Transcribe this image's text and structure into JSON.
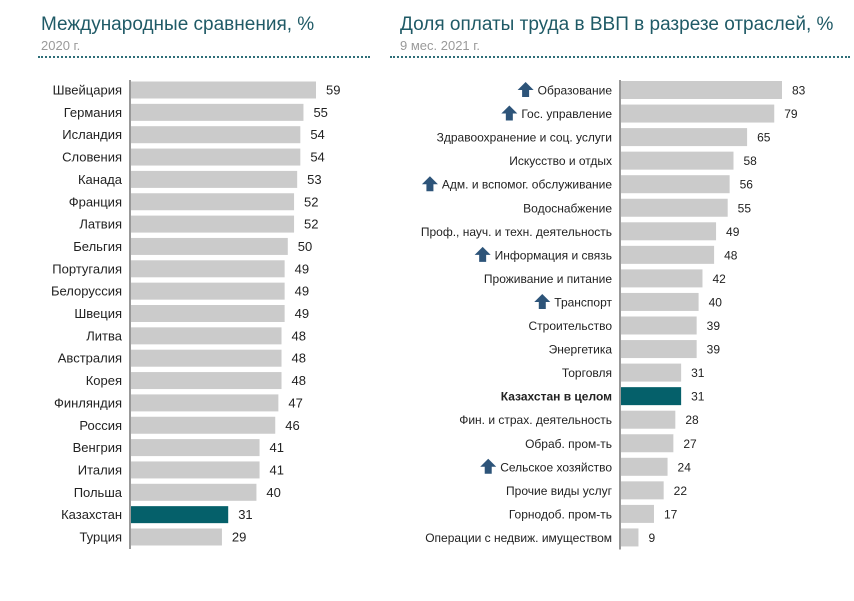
{
  "colors": {
    "title": "#1f5a66",
    "subtitle": "#9a9a9a",
    "bar": "#cbcbcb",
    "highlight": "#05606a",
    "arrow": "#2d5479",
    "text": "#222222"
  },
  "left": {
    "title": "Международные сравнения, %",
    "subtitle": "2020 г."
  },
  "right": {
    "title": "Доля оплаты труда в ВВП в разрезе отраслей, %",
    "subtitle": "9 мес. 2021 г."
  },
  "chart_data": [
    {
      "type": "bar",
      "orientation": "horizontal",
      "title": "Международные сравнения, %",
      "subtitle": "2020 г.",
      "categories": [
        "Швейцария",
        "Германия",
        "Исландия",
        "Словения",
        "Канада",
        "Франция",
        "Латвия",
        "Бельгия",
        "Португалия",
        "Белоруссия",
        "Швеция",
        "Литва",
        "Австралия",
        "Корея",
        "Финляндия",
        "Россия",
        "Венгрия",
        "Италия",
        "Польша",
        "Казахстан",
        "Турция"
      ],
      "values": [
        59,
        55,
        54,
        54,
        53,
        52,
        52,
        50,
        49,
        49,
        49,
        48,
        48,
        48,
        47,
        46,
        41,
        41,
        40,
        31,
        29
      ],
      "highlight": [
        "Казахстан"
      ],
      "xlim": [
        0,
        59
      ]
    },
    {
      "type": "bar",
      "orientation": "horizontal",
      "title": "Доля оплаты труда в ВВП в разрезе отраслей, %",
      "subtitle": "9 мес. 2021 г.",
      "categories": [
        "Образование",
        "Гос. управление",
        "Здравоохранение и соц. услуги",
        "Искусство и отдых",
        "Адм. и вспомог. обслуживание",
        "Водоснабжение",
        "Проф., науч. и техн. деятельность",
        "Информация и связь",
        "Проживание и питание",
        "Транспорт",
        "Строительство",
        "Энергетика",
        "Торговля",
        "Казахстан в целом",
        "Фин. и страх. деятельность",
        "Обраб. пром-ть",
        "Сельское хозяйство",
        "Прочие виды услуг",
        "Горнодоб. пром-ть",
        "Операции с недвиж. имуществом"
      ],
      "values": [
        83,
        79,
        65,
        58,
        56,
        55,
        49,
        48,
        42,
        40,
        39,
        39,
        31,
        31,
        28,
        27,
        24,
        22,
        17,
        9
      ],
      "highlight": [
        "Казахстан в целом"
      ],
      "up_arrow": [
        "Образование",
        "Гос. управление",
        "Адм. и вспомог. обслуживание",
        "Информация и связь",
        "Транспорт",
        "Сельское хозяйство"
      ],
      "xlim": [
        0,
        83
      ]
    }
  ]
}
